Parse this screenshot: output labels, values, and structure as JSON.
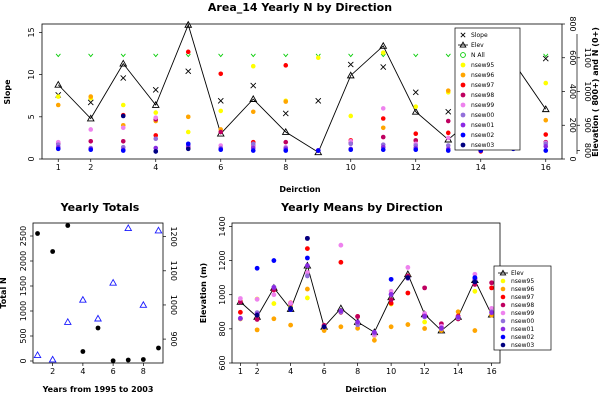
{
  "colors": {
    "y95": "#ffff00",
    "y96": "#ffa500",
    "y97": "#ff0000",
    "y98": "#bf0060",
    "y99": "#ee82ee",
    "y00": "#9370db",
    "y01": "#8a2be2",
    "y02": "#0000ff",
    "y03": "#000080",
    "nall": "#00cc00",
    "line": "#000000",
    "totals_b": "#1a1aff"
  },
  "icons": {
    "slope": "cross-marker",
    "elev": "open-triangle-marker",
    "nall": "open-circle-marker",
    "year": "filled-circle-marker"
  },
  "chart_data": [
    {
      "type": "scatter",
      "title": "Area_14 Yearly N by Direction",
      "xlabel": "Deirction",
      "ylabel": "Slope",
      "y2label": "Elevation ( 800+) and N (0+)",
      "xlim": [
        0.5,
        16.5
      ],
      "ylim": [
        0,
        16
      ],
      "y2lim": [
        0,
        800
      ],
      "xticks": [
        1,
        2,
        4,
        6,
        8,
        10,
        12,
        14,
        16
      ],
      "yticks": [
        0,
        5,
        10,
        15
      ],
      "y2ticks_text": [
        {
          "v": 0,
          "t": "0"
        },
        {
          "v": 200,
          "t": "200"
        },
        {
          "v": 400,
          "t": "400"
        },
        {
          "v": 600,
          "t": "600"
        },
        {
          "v": 800,
          "t": "800"
        }
      ],
      "y2ticks_elev": [
        {
          "v": 50,
          "t": "800"
        },
        {
          "v": 200,
          "t": "900"
        },
        {
          "v": 400,
          "t": "1000"
        },
        {
          "v": 600,
          "t": "1100"
        }
      ],
      "legend": [
        "Slope",
        "Elev",
        "N All",
        "nsew95",
        "nsew96",
        "nsew97",
        "nsew98",
        "nsew99",
        "nsew00",
        "nsew01",
        "nsew02",
        "nsew03"
      ],
      "x": [
        1,
        2,
        3,
        4,
        5,
        6,
        7,
        8,
        9,
        10,
        11,
        12,
        13,
        14,
        15,
        16
      ],
      "series": [
        {
          "name": "Slope",
          "values": [
            7.6,
            6.7,
            9.6,
            8.2,
            10.4,
            6.9,
            8.7,
            5.4,
            6.9,
            11.2,
            10.9,
            7.9,
            5.6,
            6.2,
            10.7,
            11.9
          ]
        },
        {
          "name": "Elev",
          "values": [
            8.8,
            4.8,
            11.3,
            6.4,
            15.9,
            3.0,
            7.1,
            3.2,
            0.8,
            9.9,
            13.4,
            5.6,
            2.3,
            5.6,
            11.5,
            5.9
          ]
        },
        {
          "name": "N All",
          "values": [
            12.3,
            12.3,
            12.3,
            12.3,
            12.3,
            12.3,
            12.3,
            12.3,
            12.3,
            12.3,
            12.3,
            12.3,
            12.3,
            12.3,
            12.3,
            12.3
          ]
        },
        {
          "name": "nsew95",
          "values": [
            7.4,
            7.2,
            6.4,
            5.5,
            3.2,
            5.7,
            11.0,
            6.9,
            12.0,
            5.1,
            12.6,
            6.2,
            7.9,
            5.2,
            7.1,
            9.0
          ]
        },
        {
          "name": "nsew96",
          "values": [
            6.4,
            7.4,
            4.0,
            4.5,
            5.0,
            3.5,
            5.6,
            6.8,
            1.0,
            1.9,
            3.7,
            2.2,
            8.1,
            3.0,
            4.1,
            4.6
          ]
        },
        {
          "name": "nsew97",
          "values": [
            1.3,
            1.2,
            5.2,
            2.8,
            12.7,
            10.1,
            2.0,
            11.1,
            1.0,
            2.2,
            4.8,
            3.0,
            3.1,
            0.9,
            6.2,
            2.9
          ]
        },
        {
          "name": "nsew98",
          "values": [
            1.9,
            2.1,
            2.1,
            4.7,
            1.4,
            3.2,
            1.6,
            2.0,
            1.0,
            1.9,
            2.6,
            2.2,
            4.5,
            2.3,
            1.8,
            2.0
          ]
        },
        {
          "name": "nsew99",
          "values": [
            2.0,
            3.5,
            3.7,
            4.9,
            1.6,
            1.6,
            1.7,
            1.4,
            1.0,
            2.1,
            6.0,
            1.8,
            2.5,
            2.5,
            1.9,
            1.9
          ]
        },
        {
          "name": "nsew00",
          "values": [
            1.7,
            1.3,
            1.4,
            2.4,
            1.6,
            1.3,
            1.8,
            1.3,
            1.0,
            1.8,
            1.7,
            1.6,
            1.6,
            1.4,
            1.7,
            1.8
          ]
        },
        {
          "name": "nsew01",
          "values": [
            1.4,
            1.2,
            1.1,
            1.3,
            1.5,
            1.2,
            1.3,
            1.2,
            1.0,
            1.2,
            1.4,
            1.3,
            1.2,
            1.1,
            1.4,
            1.5
          ]
        },
        {
          "name": "nsew02",
          "values": [
            1.2,
            1.1,
            1.0,
            0.9,
            1.8,
            1.1,
            1.0,
            1.0,
            1.0,
            1.1,
            1.1,
            1.1,
            1.0,
            1.0,
            1.2,
            1.0
          ]
        },
        {
          "name": "nsew03",
          "values": [
            null,
            null,
            5.1,
            0.9,
            1.2,
            null,
            null,
            null,
            null,
            null,
            null,
            null,
            null,
            null,
            null,
            null
          ]
        }
      ]
    },
    {
      "type": "scatter",
      "title": "Yearly Totals",
      "xlabel": "Years from 1995 to 2003",
      "ylabel": "Total N",
      "xlim": [
        0.7,
        9.3
      ],
      "ylim": [
        -40,
        2760
      ],
      "y2lim": [
        830,
        1240
      ],
      "xticks": [
        2,
        4,
        6,
        8
      ],
      "yticks": [
        0,
        500,
        1000,
        1500,
        2000,
        2500
      ],
      "y2ticks": [
        900,
        1000,
        1100,
        1200
      ],
      "x": [
        1,
        2,
        3,
        4,
        5,
        6,
        7,
        8,
        9
      ],
      "series": [
        {
          "name": "",
          "marker": "filled-circle",
          "values": [
            2550,
            2190,
            2710,
            190,
            660,
            5,
            20,
            30,
            260
          ]
        },
        {
          "name": "",
          "marker": "open-triangle",
          "axis": "right",
          "values": [
            853,
            840,
            950,
            1015,
            960,
            1065,
            1225,
            1000,
            1218
          ]
        }
      ]
    },
    {
      "type": "scatter",
      "title": "Yearly Means by Direction",
      "xlabel": "Deirction",
      "ylabel": "Elevation (m)",
      "xlim": [
        0.5,
        16.5
      ],
      "ylim": [
        600,
        1420
      ],
      "xticks": [
        1,
        2,
        4,
        6,
        8,
        10,
        12,
        14,
        16
      ],
      "yticks": [
        600,
        800,
        1000,
        1200,
        1400
      ],
      "legend": [
        "Elev",
        "nsew95",
        "nsew96",
        "nsew97",
        "nsew98",
        "nsew99",
        "nsew00",
        "nsew01",
        "nsew02",
        "nsew03"
      ],
      "x": [
        1,
        2,
        3,
        4,
        5,
        6,
        7,
        8,
        9,
        10,
        11,
        12,
        13,
        14,
        15,
        16
      ],
      "series": [
        {
          "name": "Elev",
          "values": [
            958,
            870,
            1040,
            916,
            1170,
            812,
            920,
            840,
            780,
            985,
            1120,
            885,
            790,
            870,
            1085,
            883
          ]
        },
        {
          "name": "nsew95",
          "values": [
            963,
            975,
            948,
            929,
            981,
            794,
            904,
            835,
            759,
            945,
            1110,
            840,
            797,
            860,
            1020,
            905
          ]
        },
        {
          "name": "nsew96",
          "values": [
            858,
            794,
            859,
            822,
            1033,
            790,
            812,
            803,
            733,
            812,
            825,
            802,
            790,
            900,
            790,
            880
          ]
        },
        {
          "name": "nsew97",
          "values": [
            897,
            880,
            1028,
            952,
            1270,
            820,
            1190,
            873,
            776,
            950,
            1010,
            885,
            810,
            875,
            1095,
            1040
          ]
        },
        {
          "name": "nsew98",
          "values": [
            958,
            855,
            1030,
            947,
            1330,
            820,
            897,
            872,
            770,
            970,
            1110,
            1040,
            830,
            858,
            1060,
            1070
          ]
        },
        {
          "name": "nsew99",
          "values": [
            978,
            973,
            1000,
            950,
            1130,
            812,
            1290,
            835,
            762,
            1020,
            1160,
            890,
            815,
            865,
            1120,
            920
          ]
        },
        {
          "name": "nsew00",
          "values": [
            860,
            895,
            1045,
            920,
            1110,
            810,
            900,
            824,
            775,
            1000,
            1095,
            870,
            800,
            865,
            1085,
            900
          ]
        },
        {
          "name": "nsew01",
          "values": [
            862,
            885,
            1042,
            915,
            1170,
            812,
            905,
            840,
            780,
            1002,
            1100,
            875,
            805,
            870,
            1092,
            895
          ]
        },
        {
          "name": "nsew02",
          "values": [
            null,
            1155,
            1200,
            913,
            1215,
            null,
            null,
            null,
            null,
            1090,
            null,
            null,
            null,
            null,
            1100,
            null
          ]
        },
        {
          "name": "nsew03",
          "values": [
            null,
            880,
            null,
            920,
            1330,
            812,
            null,
            null,
            null,
            null,
            1100,
            null,
            null,
            null,
            1075,
            null
          ]
        }
      ]
    }
  ]
}
